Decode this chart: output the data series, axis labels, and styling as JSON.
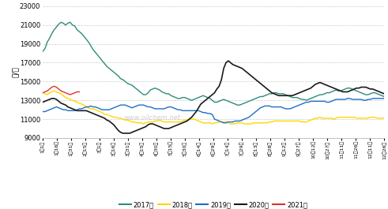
{
  "ylabel": "元/吨",
  "ylim": [
    9000,
    23000
  ],
  "yticks": [
    9000,
    11000,
    13000,
    15000,
    17000,
    19000,
    21000,
    23000
  ],
  "bg_color": "#ffffff",
  "grid_color": "#cccccc",
  "series": {
    "2017年": {
      "color": "#2e8b7a",
      "linewidth": 1.0,
      "values": [
        18200,
        18500,
        19200,
        19600,
        20100,
        20500,
        20800,
        21100,
        21300,
        21200,
        21000,
        21200,
        21300,
        21000,
        20900,
        20500,
        20300,
        20100,
        19800,
        19500,
        19200,
        18800,
        18400,
        18100,
        17800,
        17500,
        17200,
        16900,
        16600,
        16400,
        16200,
        16000,
        15800,
        15600,
        15300,
        15200,
        15000,
        14800,
        14700,
        14600,
        14400,
        14200,
        14000,
        13800,
        13600,
        13600,
        13800,
        14100,
        14200,
        14300,
        14200,
        14100,
        13900,
        13800,
        13700,
        13700,
        13500,
        13400,
        13300,
        13200,
        13200,
        13300,
        13300,
        13200,
        13100,
        13000,
        13100,
        13200,
        13300,
        13400,
        13500,
        13400,
        13300,
        13200,
        13000,
        12800,
        12800,
        12900,
        13000,
        13100,
        13000,
        12900,
        12800,
        12700,
        12600,
        12500,
        12500,
        12600,
        12700,
        12800,
        12900,
        13000,
        13100,
        13200,
        13300,
        13400,
        13400,
        13500,
        13600,
        13700,
        13700,
        13800,
        13800,
        13700,
        13700,
        13700,
        13600,
        13500,
        13400,
        13300,
        13300,
        13300,
        13200,
        13100,
        13100,
        13000,
        13100,
        13200,
        13300,
        13400,
        13500,
        13600,
        13600,
        13700,
        13800,
        13800,
        13900,
        14000,
        14100,
        14000,
        14000,
        14100,
        14200,
        14300,
        14300,
        14200,
        14100,
        14000,
        13900,
        13800,
        13700,
        13600,
        13600,
        13700,
        13800,
        13800,
        13700,
        13600,
        13500,
        13400
      ]
    },
    "2018年": {
      "color": "#ffd700",
      "linewidth": 1.0,
      "values": [
        13800,
        13700,
        13600,
        13800,
        13900,
        14000,
        13900,
        13800,
        13700,
        13500,
        13300,
        13200,
        13100,
        13000,
        12900,
        12800,
        12700,
        12600,
        12500,
        12300,
        12200,
        12100,
        12100,
        12000,
        11900,
        11800,
        11700,
        11500,
        11500,
        11400,
        11300,
        11200,
        11200,
        11100,
        11100,
        11000,
        10900,
        10900,
        10800,
        10700,
        10700,
        10600,
        10600,
        10600,
        10500,
        10600,
        10700,
        10700,
        10700,
        10800,
        10800,
        10900,
        10800,
        10700,
        10700,
        10700,
        10700,
        10700,
        10700,
        10700,
        10700,
        10800,
        10900,
        10900,
        11000,
        11000,
        11000,
        10900,
        10800,
        10700,
        10600,
        10600,
        10600,
        10600,
        10500,
        10600,
        10600,
        10700,
        10700,
        10700,
        10700,
        10600,
        10500,
        10500,
        10500,
        10600,
        10600,
        10600,
        10500,
        10500,
        10500,
        10500,
        10600,
        10600,
        10600,
        10600,
        10600,
        10600,
        10600,
        10700,
        10700,
        10800,
        10800,
        10800,
        10800,
        10800,
        10800,
        10800,
        10800,
        10800,
        10800,
        10800,
        10800,
        10700,
        10700,
        10700,
        10800,
        10900,
        11000,
        11100,
        11100,
        11200,
        11100,
        11100,
        11100,
        11100,
        11100,
        11000,
        11100,
        11200,
        11200,
        11200,
        11200,
        11200,
        11200,
        11200,
        11200,
        11100,
        11100,
        11100,
        11100,
        11100,
        11100,
        11200,
        11200,
        11200,
        11100,
        11100,
        11100,
        11100
      ]
    },
    "2019年": {
      "color": "#1e6fc4",
      "linewidth": 1.0,
      "values": [
        11800,
        11800,
        11900,
        12000,
        12100,
        12200,
        12300,
        12200,
        12100,
        12000,
        12000,
        11900,
        11900,
        11900,
        11900,
        12000,
        12100,
        12100,
        12200,
        12300,
        12300,
        12400,
        12300,
        12300,
        12200,
        12100,
        12000,
        12000,
        12000,
        12000,
        12100,
        12200,
        12300,
        12400,
        12500,
        12500,
        12500,
        12400,
        12300,
        12200,
        12300,
        12400,
        12500,
        12500,
        12500,
        12400,
        12300,
        12300,
        12200,
        12100,
        12100,
        12100,
        12100,
        12100,
        12200,
        12300,
        12300,
        12200,
        12100,
        12000,
        12000,
        11900,
        11900,
        11900,
        11900,
        11900,
        11900,
        11900,
        11900,
        11800,
        11700,
        11700,
        11600,
        11600,
        11500,
        11000,
        10900,
        10800,
        10700,
        10600,
        10600,
        10700,
        10700,
        10700,
        10800,
        10800,
        10800,
        10900,
        11000,
        11100,
        11200,
        11400,
        11600,
        11800,
        12000,
        12200,
        12300,
        12400,
        12400,
        12400,
        12300,
        12300,
        12300,
        12300,
        12300,
        12200,
        12100,
        12100,
        12100,
        12200,
        12300,
        12400,
        12500,
        12600,
        12700,
        12800,
        12800,
        12900,
        12900,
        12900,
        12900,
        12900,
        12900,
        12900,
        12800,
        12800,
        12900,
        13000,
        13100,
        13100,
        13100,
        13100,
        13100,
        13200,
        13200,
        13100,
        13100,
        13100,
        13100,
        13100,
        13000,
        13000,
        13100,
        13100,
        13200,
        13200,
        13200,
        13200,
        13200,
        13200
      ]
    },
    "2020年": {
      "color": "#1a1a1a",
      "linewidth": 1.2,
      "values": [
        12800,
        12900,
        13000,
        13100,
        13200,
        13200,
        13100,
        12900,
        12700,
        12600,
        12500,
        12300,
        12200,
        12100,
        12000,
        11900,
        11900,
        11900,
        11900,
        11900,
        11800,
        11700,
        11600,
        11500,
        11400,
        11300,
        11200,
        11100,
        10900,
        10800,
        10600,
        10400,
        10100,
        9800,
        9600,
        9500,
        9500,
        9500,
        9500,
        9600,
        9700,
        9800,
        9900,
        10000,
        10100,
        10200,
        10400,
        10500,
        10500,
        10400,
        10300,
        10200,
        10100,
        10000,
        10000,
        10000,
        10100,
        10200,
        10300,
        10400,
        10500,
        10600,
        10700,
        10800,
        11000,
        11200,
        11500,
        11800,
        12200,
        12600,
        12800,
        13000,
        13200,
        13400,
        13600,
        13800,
        14200,
        14500,
        15200,
        16400,
        17000,
        17200,
        17000,
        16800,
        16700,
        16600,
        16500,
        16400,
        16200,
        16000,
        15800,
        15600,
        15400,
        15200,
        15000,
        14800,
        14600,
        14400,
        14200,
        14000,
        13800,
        13700,
        13600,
        13500,
        13500,
        13500,
        13500,
        13500,
        13500,
        13500,
        13600,
        13700,
        13800,
        13900,
        14000,
        14100,
        14200,
        14300,
        14500,
        14700,
        14800,
        14900,
        14800,
        14700,
        14600,
        14500,
        14400,
        14300,
        14200,
        14100,
        14000,
        13900,
        13900,
        13900,
        14000,
        14100,
        14200,
        14300,
        14300,
        14400,
        14400,
        14400,
        14300,
        14200,
        14200,
        14100,
        14000,
        13900,
        13800,
        13700
      ]
    },
    "2021年": {
      "color": "#e03030",
      "linewidth": 1.0,
      "values": [
        13800,
        13900,
        14000,
        14200,
        14400,
        14500,
        14400,
        14200,
        14000,
        13900,
        13800,
        13700,
        13600,
        13700,
        13800,
        13900,
        13900,
        null,
        null,
        null,
        null,
        null,
        null,
        null,
        null,
        null,
        null,
        null,
        null,
        null,
        null,
        null,
        null,
        null,
        null,
        null,
        null,
        null,
        null,
        null,
        null,
        null,
        null,
        null,
        null,
        null,
        null,
        null,
        null,
        null,
        null,
        null,
        null,
        null,
        null,
        null,
        null,
        null,
        null,
        null,
        null,
        null,
        null,
        null,
        null,
        null,
        null,
        null,
        null,
        null,
        null,
        null,
        null,
        null,
        null,
        null,
        null,
        null,
        null,
        null,
        null,
        null,
        null,
        null,
        null,
        null,
        null,
        null,
        null,
        null,
        null,
        null,
        null,
        null,
        null,
        null,
        null,
        null,
        null,
        null,
        null,
        null,
        null,
        null,
        null,
        null,
        null,
        null,
        null,
        null,
        null,
        null,
        null,
        null,
        null,
        null,
        null,
        null,
        null,
        null,
        null,
        null,
        null,
        null,
        null,
        null,
        null,
        null,
        null,
        null,
        null,
        null,
        null,
        null,
        null,
        null,
        null,
        null,
        null,
        null,
        null,
        null,
        null,
        null,
        null,
        null,
        null
      ]
    }
  },
  "x_labels": [
    "1月1日",
    "1月16日",
    "1月31日",
    "2月15日",
    "3月1日",
    "3月16日",
    "3月31日",
    "4月15日",
    "4月30日",
    "5月15日",
    "5月30日",
    "6月14日",
    "6月29日",
    "7月14日",
    "7月29日",
    "8月13日",
    "8月28日",
    "9月12日",
    "9月27日",
    "10月12日",
    "10月27日",
    "11月11日",
    "11月26日",
    "12月11日",
    "12月26日"
  ],
  "n_points": 150,
  "legend_items": [
    "2017年",
    "2018年",
    "2019年",
    "2020年",
    "2021年"
  ],
  "legend_colors": [
    "#2e8b7a",
    "#ffd700",
    "#1e6fc4",
    "#1a1a1a",
    "#e03030"
  ],
  "watermark": "www.oilchem.net"
}
